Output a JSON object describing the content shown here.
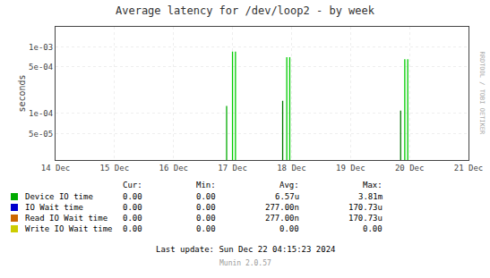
{
  "chart_data": {
    "type": "spike",
    "title": "Average latency for /dev/loop2 - by week",
    "ylabel": "seconds",
    "log": "y",
    "grid": true,
    "x": [
      2.9,
      3.0,
      3.05,
      3.08,
      3.85,
      3.92,
      3.97,
      4.02,
      5.85,
      5.92,
      5.97,
      6.02
    ],
    "values": [
      0.00013,
      0.00085,
      0.00085,
      2e-05,
      0.000155,
      0.0007,
      0.0007,
      2e-05,
      0.00011,
      0.00065,
      0.00065,
      2e-05
    ],
    "colors": [
      "#00aa00",
      "#00cc00",
      "#00cc00",
      "#cc6600",
      "#007700",
      "#00cc00",
      "#00cc00",
      "#cc6600",
      "#007700",
      "#00cc00",
      "#00cc00",
      "#cc3300"
    ],
    "xlim": [
      0,
      7
    ],
    "xticks": [
      {
        "value": 0,
        "label": "14 Dec"
      },
      {
        "value": 1,
        "label": "15 Dec"
      },
      {
        "value": 2,
        "label": "16 Dec"
      },
      {
        "value": 3,
        "label": "17 Dec"
      },
      {
        "value": 4,
        "label": "18 Dec"
      },
      {
        "value": 5,
        "label": "19 Dec"
      },
      {
        "value": 6,
        "label": "20 Dec"
      },
      {
        "value": 7,
        "label": "21 Dec"
      }
    ],
    "ylim": [
      2e-05,
      0.002
    ],
    "yticks": [
      {
        "value": 5e-05,
        "label": "5e-05"
      },
      {
        "value": 0.0001,
        "label": "1e-04"
      },
      {
        "value": 0.0005,
        "label": "5e-04"
      },
      {
        "value": 0.001,
        "label": "1e-03"
      }
    ],
    "legend_table": {
      "headers": [
        "Cur:",
        "Min:",
        "Avg:",
        "Max:"
      ],
      "rows": [
        {
          "name": "Device IO time",
          "color": "#00aa00",
          "values": [
            "0.00",
            "0.00",
            "6.57u",
            "3.81m"
          ]
        },
        {
          "name": "IO Wait time",
          "color": "#0000cc",
          "values": [
            "0.00",
            "0.00",
            "277.00n",
            "170.73u"
          ]
        },
        {
          "name": "Read IO Wait time",
          "color": "#cc6600",
          "values": [
            "0.00",
            "0.00",
            "277.00n",
            "170.73u"
          ]
        },
        {
          "name": "Write IO Wait time",
          "color": "#cccc00",
          "values": [
            "0.00",
            "0.00",
            "0.00",
            "0.00"
          ]
        }
      ]
    },
    "annotations": [
      "Last update: Sun Dec 22 04:15:23 2024",
      "Munin 2.0.57",
      "RRDTOOL / TOBI OETIKER"
    ]
  }
}
